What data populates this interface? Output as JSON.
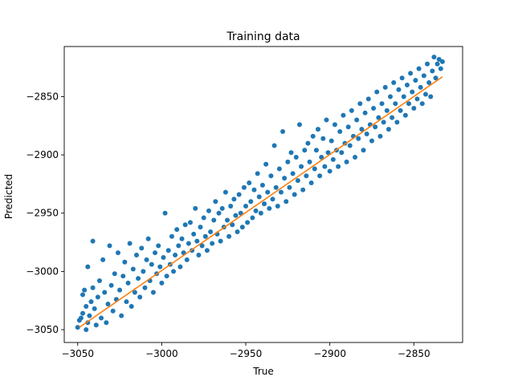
{
  "chart_data": {
    "type": "scatter",
    "title": "Training data",
    "xlabel": "True",
    "ylabel": "Predicted",
    "xlim": [
      -3058,
      -2821
    ],
    "ylim": [
      -3061,
      -2807
    ],
    "xticks": [
      -3050,
      -3000,
      -2950,
      -2900,
      -2850
    ],
    "yticks": [
      -3050,
      -3000,
      -2950,
      -2900,
      -2850
    ],
    "grid": false,
    "series": [
      {
        "type": "scatter",
        "color": "#1f77b4",
        "points": [
          [
            -3050,
            -3048
          ],
          [
            -3049,
            -3042
          ],
          [
            -3048,
            -3040
          ],
          [
            -3047,
            -3036
          ],
          [
            -3047,
            -3020
          ],
          [
            -3046,
            -3016
          ],
          [
            -3045,
            -3050
          ],
          [
            -3045,
            -3030
          ],
          [
            -3044,
            -3044
          ],
          [
            -3044,
            -2996
          ],
          [
            -3043,
            -3038
          ],
          [
            -3042,
            -3026
          ],
          [
            -3041,
            -3014
          ],
          [
            -3041,
            -2974
          ],
          [
            -3040,
            -3032
          ],
          [
            -3039,
            -3046
          ],
          [
            -3038,
            -3022
          ],
          [
            -3037,
            -3008
          ],
          [
            -3036,
            -3040
          ],
          [
            -3035,
            -2990
          ],
          [
            -3034,
            -3018
          ],
          [
            -3033,
            -3044
          ],
          [
            -3032,
            -3028
          ],
          [
            -3031,
            -2978
          ],
          [
            -3030,
            -3012
          ],
          [
            -3029,
            -3034
          ],
          [
            -3028,
            -3002
          ],
          [
            -3027,
            -3024
          ],
          [
            -3026,
            -2984
          ],
          [
            -3025,
            -3016
          ],
          [
            -3024,
            -3038
          ],
          [
            -3023,
            -3004
          ],
          [
            -3022,
            -2992
          ],
          [
            -3021,
            -3026
          ],
          [
            -3020,
            -3010
          ],
          [
            -3019,
            -2976
          ],
          [
            -3018,
            -3030
          ],
          [
            -3017,
            -2998
          ],
          [
            -3016,
            -3018
          ],
          [
            -3015,
            -2986
          ],
          [
            -3014,
            -3006
          ],
          [
            -3013,
            -3022
          ],
          [
            -3012,
            -2980
          ],
          [
            -3011,
            -3000
          ],
          [
            -3010,
            -3014
          ],
          [
            -3009,
            -2990
          ],
          [
            -3008,
            -2972
          ],
          [
            -3007,
            -3008
          ],
          [
            -3006,
            -2994
          ],
          [
            -3005,
            -3018
          ],
          [
            -3004,
            -2984
          ],
          [
            -3003,
            -3002
          ],
          [
            -3002,
            -2978
          ],
          [
            -3001,
            -2996
          ],
          [
            -3000,
            -3010
          ],
          [
            -2999,
            -2988
          ],
          [
            -2998,
            -2950
          ],
          [
            -2997,
            -3004
          ],
          [
            -2996,
            -2982
          ],
          [
            -2995,
            -2994
          ],
          [
            -2994,
            -2970
          ],
          [
            -2993,
            -3000
          ],
          [
            -2992,
            -2986
          ],
          [
            -2991,
            -2964
          ],
          [
            -2990,
            -2978
          ],
          [
            -2989,
            -2996
          ],
          [
            -2988,
            -2972
          ],
          [
            -2987,
            -2984
          ],
          [
            -2986,
            -2960
          ],
          [
            -2985,
            -2990
          ],
          [
            -2984,
            -2976
          ],
          [
            -2983,
            -2958
          ],
          [
            -2982,
            -2982
          ],
          [
            -2981,
            -2968
          ],
          [
            -2980,
            -2946
          ],
          [
            -2979,
            -2974
          ],
          [
            -2978,
            -2986
          ],
          [
            -2977,
            -2962
          ],
          [
            -2976,
            -2978
          ],
          [
            -2975,
            -2954
          ],
          [
            -2974,
            -2970
          ],
          [
            -2973,
            -2982
          ],
          [
            -2972,
            -2948
          ],
          [
            -2971,
            -2966
          ],
          [
            -2970,
            -2976
          ],
          [
            -2969,
            -2956
          ],
          [
            -2968,
            -2940
          ],
          [
            -2967,
            -2968
          ],
          [
            -2966,
            -2950
          ],
          [
            -2965,
            -2974
          ],
          [
            -2964,
            -2946
          ],
          [
            -2963,
            -2962
          ],
          [
            -2962,
            -2932
          ],
          [
            -2961,
            -2956
          ],
          [
            -2960,
            -2970
          ],
          [
            -2959,
            -2944
          ],
          [
            -2958,
            -2960
          ],
          [
            -2957,
            -2938
          ],
          [
            -2956,
            -2952
          ],
          [
            -2955,
            -2966
          ],
          [
            -2954,
            -2934
          ],
          [
            -2953,
            -2950
          ],
          [
            -2952,
            -2962
          ],
          [
            -2951,
            -2928
          ],
          [
            -2950,
            -2944
          ],
          [
            -2949,
            -2958
          ],
          [
            -2948,
            -2924
          ],
          [
            -2947,
            -2940
          ],
          [
            -2946,
            -2954
          ],
          [
            -2945,
            -2930
          ],
          [
            -2944,
            -2948
          ],
          [
            -2943,
            -2916
          ],
          [
            -2942,
            -2936
          ],
          [
            -2941,
            -2950
          ],
          [
            -2940,
            -2926
          ],
          [
            -2939,
            -2942
          ],
          [
            -2938,
            -2908
          ],
          [
            -2937,
            -2932
          ],
          [
            -2936,
            -2946
          ],
          [
            -2935,
            -2918
          ],
          [
            -2934,
            -2938
          ],
          [
            -2933,
            -2892
          ],
          [
            -2932,
            -2928
          ],
          [
            -2931,
            -2944
          ],
          [
            -2930,
            -2912
          ],
          [
            -2929,
            -2932
          ],
          [
            -2928,
            -2880
          ],
          [
            -2927,
            -2920
          ],
          [
            -2926,
            -2940
          ],
          [
            -2925,
            -2906
          ],
          [
            -2924,
            -2928
          ],
          [
            -2923,
            -2898
          ],
          [
            -2922,
            -2916
          ],
          [
            -2921,
            -2934
          ],
          [
            -2920,
            -2902
          ],
          [
            -2919,
            -2922
          ],
          [
            -2918,
            -2874
          ],
          [
            -2917,
            -2910
          ],
          [
            -2916,
            -2930
          ],
          [
            -2915,
            -2896
          ],
          [
            -2914,
            -2918
          ],
          [
            -2913,
            -2890
          ],
          [
            -2912,
            -2906
          ],
          [
            -2911,
            -2924
          ],
          [
            -2910,
            -2884
          ],
          [
            -2909,
            -2912
          ],
          [
            -2908,
            -2896
          ],
          [
            -2907,
            -2878
          ],
          [
            -2906,
            -2918
          ],
          [
            -2905,
            -2902
          ],
          [
            -2904,
            -2886
          ],
          [
            -2903,
            -2910
          ],
          [
            -2902,
            -2870
          ],
          [
            -2901,
            -2898
          ],
          [
            -2900,
            -2914
          ],
          [
            -2899,
            -2888
          ],
          [
            -2898,
            -2904
          ],
          [
            -2897,
            -2874
          ],
          [
            -2896,
            -2896
          ],
          [
            -2895,
            -2910
          ],
          [
            -2894,
            -2880
          ],
          [
            -2893,
            -2898
          ],
          [
            -2892,
            -2866
          ],
          [
            -2891,
            -2890
          ],
          [
            -2890,
            -2906
          ],
          [
            -2889,
            -2876
          ],
          [
            -2888,
            -2892
          ],
          [
            -2887,
            -2862
          ],
          [
            -2886,
            -2884
          ],
          [
            -2885,
            -2902
          ],
          [
            -2884,
            -2870
          ],
          [
            -2883,
            -2886
          ],
          [
            -2882,
            -2856
          ],
          [
            -2881,
            -2878
          ],
          [
            -2880,
            -2896
          ],
          [
            -2879,
            -2864
          ],
          [
            -2878,
            -2882
          ],
          [
            -2877,
            -2852
          ],
          [
            -2876,
            -2874
          ],
          [
            -2875,
            -2888
          ],
          [
            -2874,
            -2860
          ],
          [
            -2873,
            -2876
          ],
          [
            -2872,
            -2846
          ],
          [
            -2871,
            -2868
          ],
          [
            -2870,
            -2884
          ],
          [
            -2869,
            -2856
          ],
          [
            -2868,
            -2872
          ],
          [
            -2867,
            -2842
          ],
          [
            -2866,
            -2862
          ],
          [
            -2865,
            -2878
          ],
          [
            -2864,
            -2850
          ],
          [
            -2863,
            -2868
          ],
          [
            -2862,
            -2838
          ],
          [
            -2861,
            -2856
          ],
          [
            -2860,
            -2872
          ],
          [
            -2859,
            -2844
          ],
          [
            -2858,
            -2862
          ],
          [
            -2857,
            -2834
          ],
          [
            -2856,
            -2850
          ],
          [
            -2855,
            -2866
          ],
          [
            -2854,
            -2840
          ],
          [
            -2853,
            -2856
          ],
          [
            -2852,
            -2830
          ],
          [
            -2851,
            -2846
          ],
          [
            -2850,
            -2860
          ],
          [
            -2849,
            -2836
          ],
          [
            -2848,
            -2852
          ],
          [
            -2847,
            -2826
          ],
          [
            -2846,
            -2842
          ],
          [
            -2845,
            -2856
          ],
          [
            -2844,
            -2832
          ],
          [
            -2843,
            -2848
          ],
          [
            -2842,
            -2822
          ],
          [
            -2841,
            -2838
          ],
          [
            -2840,
            -2850
          ],
          [
            -2839,
            -2828
          ],
          [
            -2838,
            -2816
          ],
          [
            -2837,
            -2834
          ],
          [
            -2836,
            -2822
          ],
          [
            -2835,
            -2818
          ],
          [
            -2834,
            -2826
          ],
          [
            -2833,
            -2820
          ]
        ]
      },
      {
        "type": "line",
        "color": "#ff7f0e",
        "points": [
          [
            -3049,
            -3048
          ],
          [
            -2833,
            -2833
          ]
        ]
      }
    ]
  }
}
